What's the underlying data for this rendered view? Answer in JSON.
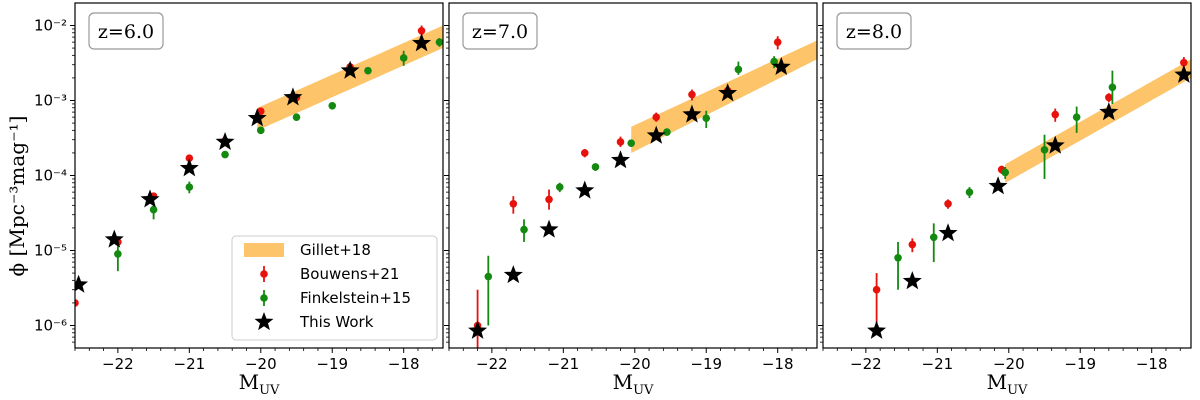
{
  "ylabel": "ϕ [Mpc⁻³mag⁻¹]",
  "xlabel_main": "M",
  "xlabel_sub": "UV",
  "legend": [
    "Gillet+18",
    "Bouwens+21",
    "Finkelstein+15",
    "This Work"
  ],
  "colors": {
    "band": "#fdc46a",
    "bouwens": "#e8120c",
    "finkelstein": "#138a0f",
    "this_work": "#000000"
  },
  "ytick_labels": [
    "10⁻⁶",
    "10⁻⁵",
    "10⁻⁴",
    "10⁻³",
    "10⁻²"
  ],
  "xtick_labels": [
    "−22",
    "−21",
    "−20",
    "−19",
    "−18"
  ],
  "chart_data": [
    {
      "type": "scatter",
      "z_label": "z=6.0",
      "xlabel": "MUV",
      "ylabel": "ϕ [Mpc⁻³mag⁻¹]",
      "xlim": [
        -22.6,
        -17.45
      ],
      "ylim_log10": [
        -6.3,
        -1.7
      ],
      "yscale": "log",
      "grid": false,
      "band": {
        "name": "Gillet+18",
        "x": [
          -20.05,
          -17.45
        ],
        "log_lo_start": -3.4,
        "log_hi_start": -3.1,
        "log_lo_end": -2.3,
        "log_hi_end": -2.0
      },
      "series": [
        {
          "name": "Bouwens+21",
          "points": [
            [
              -22.6,
              2e-06,
              1.9e-06,
              2.2e-06
            ],
            [
              -22.0,
              1.3e-05,
              1.15e-05,
              1.5e-05
            ],
            [
              -21.5,
              5.3e-05,
              4.8e-05,
              5.9e-05
            ],
            [
              -21.0,
              0.00017,
              0.000158,
              0.000182
            ],
            [
              -20.5,
              0.00029,
              0.00027,
              0.00031
            ],
            [
              -20.0,
              0.00072,
              0.00068,
              0.00076
            ],
            [
              -19.5,
              0.0011,
              0.00105,
              0.00117
            ],
            [
              -18.75,
              0.0028,
              0.0026,
              0.003
            ],
            [
              -17.75,
              0.0085,
              0.007,
              0.01
            ]
          ]
        },
        {
          "name": "Finkelstein+15",
          "points": [
            [
              -22.0,
              9e-06,
              5.3e-06,
              1.3e-05
            ],
            [
              -21.5,
              3.5e-05,
              2.6e-05,
              4.4e-05
            ],
            [
              -21.0,
              7e-05,
              5.8e-05,
              8.3e-05
            ],
            [
              -20.5,
              0.00019,
              0.000175,
              0.000205
            ],
            [
              -20.0,
              0.0004,
              0.000375,
              0.000425
            ],
            [
              -19.5,
              0.0006,
              0.00056,
              0.00064
            ],
            [
              -19.0,
              0.00085,
              0.0008,
              0.0009
            ],
            [
              -18.5,
              0.0025,
              0.0023,
              0.0027
            ],
            [
              -18.0,
              0.0037,
              0.0029,
              0.0046
            ],
            [
              -17.5,
              0.006,
              0.0052,
              0.0068
            ]
          ]
        },
        {
          "name": "This Work",
          "points": [
            [
              -22.55,
              3.5e-06
            ],
            [
              -22.05,
              1.4e-05
            ],
            [
              -21.55,
              4.8e-05
            ],
            [
              -21.0,
              0.000125
            ],
            [
              -20.5,
              0.00028
            ],
            [
              -20.05,
              0.00058
            ],
            [
              -19.55,
              0.0011
            ],
            [
              -18.75,
              0.0025
            ],
            [
              -17.75,
              0.0058
            ]
          ]
        }
      ]
    },
    {
      "type": "scatter",
      "z_label": "z=7.0",
      "xlabel": "MUV",
      "ylabel": "",
      "xlim": [
        -22.6,
        -17.45
      ],
      "ylim_log10": [
        -6.3,
        -1.7
      ],
      "yscale": "log",
      "grid": false,
      "band": {
        "name": "Gillet+18",
        "x": [
          -20.05,
          -17.45
        ],
        "log_lo_start": -3.7,
        "log_hi_start": -3.35,
        "log_lo_end": -2.45,
        "log_hi_end": -2.2
      },
      "series": [
        {
          "name": "Bouwens+21",
          "points": [
            [
              -22.2,
              1e-06,
              5e-07,
              3e-06
            ],
            [
              -21.7,
              4.2e-05,
              3.1e-05,
              5.3e-05
            ],
            [
              -21.2,
              4.8e-05,
              3.5e-05,
              6.5e-05
            ],
            [
              -20.7,
              0.0002,
              0.000175,
              0.000225
            ],
            [
              -20.2,
              0.00028,
              0.00024,
              0.00033
            ],
            [
              -19.7,
              0.0006,
              0.00052,
              0.00069
            ],
            [
              -19.2,
              0.0012,
              0.001,
              0.0014
            ],
            [
              -18.7,
              0.00135,
              0.0011,
              0.0016
            ],
            [
              -18.0,
              0.006,
              0.0048,
              0.0072
            ]
          ]
        },
        {
          "name": "Finkelstein+15",
          "points": [
            [
              -22.05,
              4.5e-06,
              1e-06,
              8.5e-06
            ],
            [
              -21.55,
              1.9e-05,
              1.3e-05,
              2.6e-05
            ],
            [
              -21.05,
              7e-05,
              6e-05,
              8e-05
            ],
            [
              -20.55,
              0.00013,
              0.000115,
              0.000145
            ],
            [
              -20.05,
              0.00027,
              0.00025,
              0.00029
            ],
            [
              -19.55,
              0.00038,
              0.00034,
              0.00042
            ],
            [
              -19.0,
              0.00058,
              0.00043,
              0.00073
            ],
            [
              -18.55,
              0.0026,
              0.0022,
              0.0033
            ],
            [
              -18.05,
              0.0033,
              0.0027,
              0.0039
            ]
          ]
        },
        {
          "name": "This Work",
          "points": [
            [
              -22.2,
              8.5e-07
            ],
            [
              -21.7,
              4.7e-06
            ],
            [
              -21.2,
              1.9e-05
            ],
            [
              -20.7,
              6.3e-05
            ],
            [
              -20.2,
              0.00016
            ],
            [
              -19.7,
              0.00034
            ],
            [
              -19.2,
              0.00065
            ],
            [
              -18.7,
              0.00125
            ],
            [
              -17.95,
              0.0028
            ]
          ]
        }
      ]
    },
    {
      "type": "scatter",
      "z_label": "z=8.0",
      "xlabel": "MUV",
      "ylabel": "",
      "xlim": [
        -22.6,
        -17.45
      ],
      "ylim_log10": [
        -6.3,
        -1.7
      ],
      "yscale": "log",
      "grid": false,
      "band": {
        "name": "Gillet+18",
        "x": [
          -20.05,
          -17.45
        ],
        "log_lo_start": -4.1,
        "log_hi_start": -3.85,
        "log_lo_end": -2.7,
        "log_hi_end": -2.45
      },
      "series": [
        {
          "name": "Bouwens+21",
          "points": [
            [
              -21.85,
              3e-06,
              1e-06,
              5e-06
            ],
            [
              -21.35,
              1.2e-05,
              9.5e-06,
              1.45e-05
            ],
            [
              -20.85,
              4.2e-05,
              3.6e-05,
              4.8e-05
            ],
            [
              -20.1,
              0.00012,
              0.000105,
              0.000135
            ],
            [
              -19.35,
              0.00065,
              0.00052,
              0.00078
            ],
            [
              -18.6,
              0.0011,
              0.00095,
              0.00125
            ],
            [
              -17.55,
              0.0032,
              0.0026,
              0.0038
            ]
          ]
        },
        {
          "name": "Finkelstein+15",
          "points": [
            [
              -21.55,
              8e-06,
              3e-06,
              1.3e-05
            ],
            [
              -21.05,
              1.5e-05,
              7e-06,
              2.3e-05
            ],
            [
              -20.55,
              6e-05,
              5e-05,
              7e-05
            ],
            [
              -20.05,
              0.00011,
              9e-05,
              0.00013
            ],
            [
              -19.5,
              0.00022,
              9e-05,
              0.00035
            ],
            [
              -19.05,
              0.0006,
              0.00037,
              0.00083
            ],
            [
              -18.55,
              0.0015,
              0.0009,
              0.0025
            ]
          ]
        },
        {
          "name": "This Work",
          "points": [
            [
              -21.85,
              8.5e-07
            ],
            [
              -21.35,
              3.9e-06
            ],
            [
              -20.85,
              1.7e-05
            ],
            [
              -20.15,
              7.2e-05
            ],
            [
              -19.35,
              0.00025
            ],
            [
              -18.6,
              0.0007
            ],
            [
              -17.55,
              0.0022
            ]
          ]
        }
      ]
    }
  ]
}
